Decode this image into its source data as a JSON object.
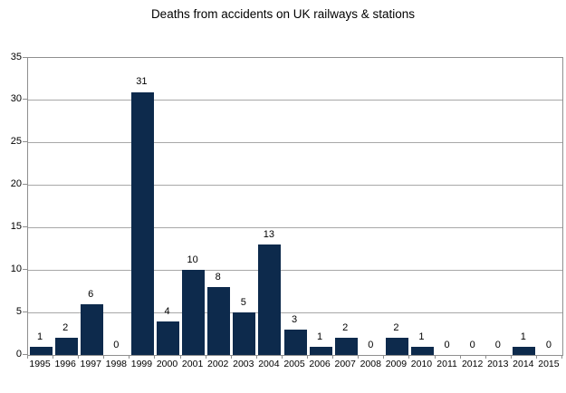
{
  "chart_data": {
    "type": "bar",
    "title": "Deaths from accidents on UK railways & stations",
    "categories": [
      "1995",
      "1996",
      "1997",
      "1998",
      "1999",
      "2000",
      "2001",
      "2002",
      "2003",
      "2004",
      "2005",
      "2006",
      "2007",
      "2008",
      "2009",
      "2010",
      "2011",
      "2012",
      "2013",
      "2014",
      "2015"
    ],
    "values": [
      1,
      2,
      6,
      0,
      31,
      4,
      10,
      8,
      5,
      13,
      3,
      1,
      2,
      0,
      2,
      1,
      0,
      0,
      0,
      1,
      0
    ],
    "xlabel": "",
    "ylabel": "",
    "ylim": [
      0,
      35
    ],
    "yticks": [
      0,
      5,
      10,
      15,
      20,
      25,
      30,
      35
    ],
    "grid": true,
    "legend_position": "none",
    "value_labels_shown": true,
    "colors": {
      "bar": "#0d2a4c",
      "gridline": "#a8a8a8",
      "axis": "#8f8f8f",
      "background": "#ffffff",
      "text": "#000000"
    }
  }
}
